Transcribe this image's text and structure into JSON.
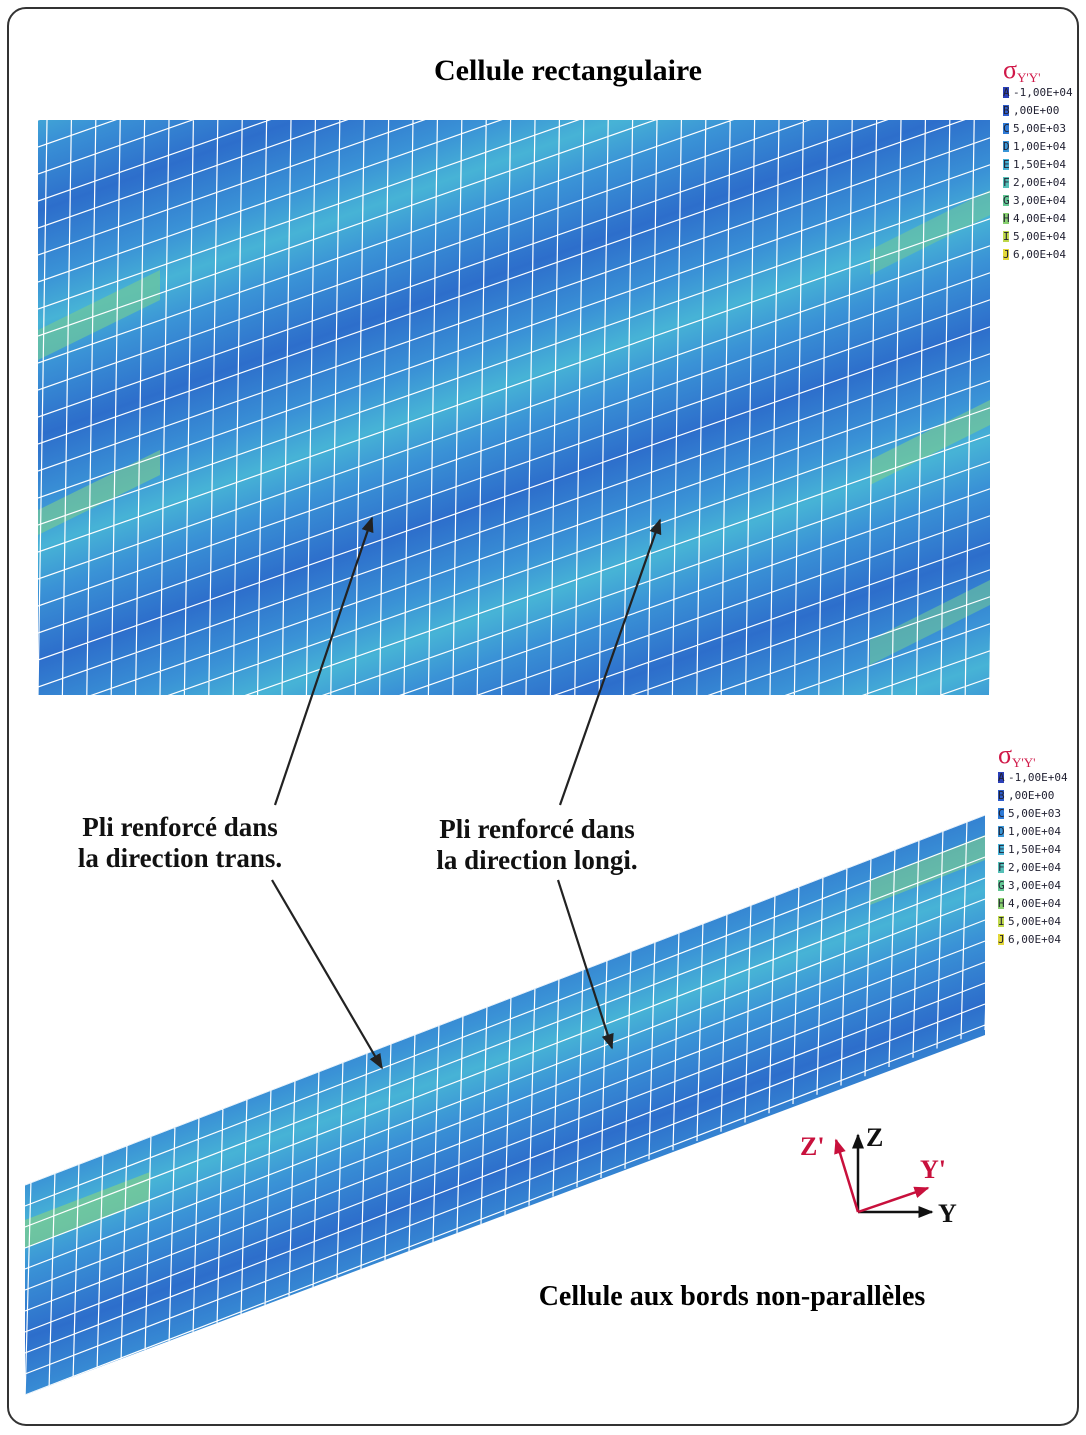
{
  "top_panel": {
    "title": "Cellule rectangulaire",
    "legend": {
      "symbol": "σ",
      "subscript": "Y'Y'",
      "entries": [
        {
          "key": "A",
          "value": "-1,00E+04"
        },
        {
          "key": "B",
          "value": ",00E+00"
        },
        {
          "key": "C",
          "value": "5,00E+03"
        },
        {
          "key": "D",
          "value": "1,00E+04"
        },
        {
          "key": "E",
          "value": "1,50E+04"
        },
        {
          "key": "F",
          "value": "2,00E+04"
        },
        {
          "key": "G",
          "value": "3,00E+04"
        },
        {
          "key": "H",
          "value": "4,00E+04"
        },
        {
          "key": "I",
          "value": "5,00E+04"
        },
        {
          "key": "J",
          "value": "6,00E+04"
        }
      ]
    }
  },
  "bottom_panel": {
    "title": "Cellule aux bords non-parallèles",
    "legend": {
      "symbol": "σ",
      "subscript": "Y'Y'",
      "entries": [
        {
          "key": "A",
          "value": "-1,00E+04"
        },
        {
          "key": "B",
          "value": ",00E+00"
        },
        {
          "key": "C",
          "value": "5,00E+03"
        },
        {
          "key": "D",
          "value": "1,00E+04"
        },
        {
          "key": "E",
          "value": "1,50E+04"
        },
        {
          "key": "F",
          "value": "2,00E+04"
        },
        {
          "key": "G",
          "value": "3,00E+04"
        },
        {
          "key": "H",
          "value": "4,00E+04"
        },
        {
          "key": "I",
          "value": "5,00E+04"
        },
        {
          "key": "J",
          "value": "6,00E+04"
        }
      ]
    }
  },
  "annotations": [
    {
      "lines": [
        "Pli renforcé dans",
        "la direction trans."
      ]
    },
    {
      "lines": [
        "Pli renforcé dans",
        "la direction longi."
      ]
    }
  ],
  "axes": {
    "z_prime": "Z'",
    "z": "Z",
    "y_prime": "Y'",
    "y": "Y"
  }
}
